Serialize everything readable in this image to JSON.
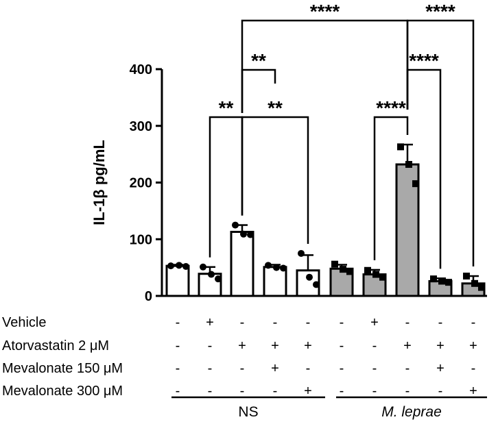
{
  "chart_data": {
    "type": "bar",
    "title": "",
    "xlabel": "",
    "ylabel": "IL-1β pg/mL",
    "ylim": [
      0,
      400
    ],
    "yticks": [
      0,
      100,
      200,
      300,
      400
    ],
    "ytick_labels": [
      "0",
      "100",
      "200",
      "300",
      "400"
    ],
    "colors": {
      "ns_fill": "#ffffff",
      "ml_fill": "#a9a9a9",
      "stroke": "#000000"
    },
    "bars": [
      {
        "id": "ns-1",
        "group": "NS",
        "value": 53,
        "error": 2,
        "points": [
          53,
          54,
          52
        ],
        "marker": "circle"
      },
      {
        "id": "ns-2",
        "group": "NS",
        "value": 39,
        "error": 12,
        "points": [
          51,
          38,
          30
        ],
        "marker": "circle"
      },
      {
        "id": "ns-3",
        "group": "NS",
        "value": 113,
        "error": 12,
        "points": [
          125,
          109,
          108
        ],
        "marker": "circle"
      },
      {
        "id": "ns-4",
        "group": "NS",
        "value": 51,
        "error": 4,
        "points": [
          54,
          50,
          49
        ],
        "marker": "circle"
      },
      {
        "id": "ns-5",
        "group": "NS",
        "value": 45,
        "error": 27,
        "points": [
          75,
          33,
          20
        ],
        "marker": "circle"
      },
      {
        "id": "ml-1",
        "group": "M. leprae",
        "value": 48,
        "error": 7,
        "points": [
          56,
          47,
          43
        ],
        "marker": "square"
      },
      {
        "id": "ml-2",
        "group": "M. leprae",
        "value": 38,
        "error": 8,
        "points": [
          45,
          38,
          33
        ],
        "marker": "square"
      },
      {
        "id": "ml-3",
        "group": "M. leprae",
        "value": 232,
        "error": 35,
        "points": [
          263,
          232,
          198
        ],
        "marker": "square"
      },
      {
        "id": "ml-4",
        "group": "M. leprae",
        "value": 26,
        "error": 5,
        "points": [
          30,
          26,
          24
        ],
        "marker": "square"
      },
      {
        "id": "ml-5",
        "group": "M. leprae",
        "value": 22,
        "error": 13,
        "points": [
          35,
          22,
          15
        ],
        "marker": "square"
      }
    ],
    "significance": [
      {
        "from": 1,
        "to": 2,
        "label": "**",
        "level": 0
      },
      {
        "from": 2,
        "to": 3,
        "label": "**",
        "level": 1
      },
      {
        "from": 2,
        "to": 4,
        "label": "**",
        "level": 0
      },
      {
        "from": 6,
        "to": 7,
        "label": "****",
        "level": 0
      },
      {
        "from": 7,
        "to": 8,
        "label": "****",
        "level": 1
      },
      {
        "from": 2,
        "to": 7,
        "label": "****",
        "level": 2
      },
      {
        "from": 7,
        "to": 9,
        "label": "****",
        "level": 2
      }
    ],
    "treatment_rows": [
      {
        "label": "Vehicle",
        "signs": [
          "-",
          "+",
          "-",
          "-",
          "-",
          "-",
          "+",
          "-",
          "-",
          "-"
        ]
      },
      {
        "label": "Atorvastatin 2 μM",
        "signs": [
          "-",
          "-",
          "+",
          "+",
          "+",
          "-",
          "-",
          "+",
          "+",
          "+"
        ]
      },
      {
        "label": "Mevalonate 150 μM",
        "signs": [
          "-",
          "-",
          "-",
          "+",
          "-",
          "-",
          "-",
          "-",
          "+",
          "-"
        ]
      },
      {
        "label": "Mevalonate 300 μM",
        "signs": [
          "-",
          "-",
          "-",
          "-",
          "+",
          "-",
          "-",
          "-",
          "-",
          "+"
        ]
      }
    ],
    "groups": [
      {
        "label": "NS",
        "italic": false,
        "bars": [
          0,
          4
        ]
      },
      {
        "label": "M. leprae",
        "italic": true,
        "bars": [
          5,
          9
        ]
      }
    ]
  }
}
